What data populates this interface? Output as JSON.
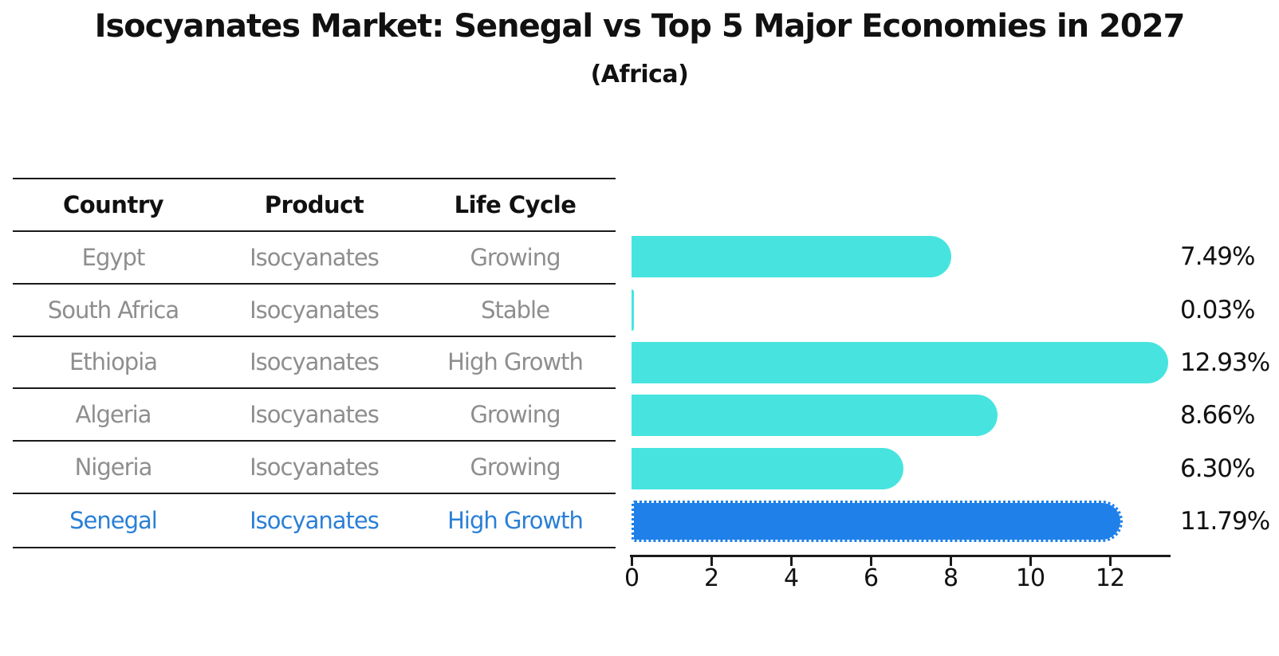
{
  "title": "Isocyanates Market: Senegal vs Top 5 Major Economies in 2027",
  "subtitle": "(Africa)",
  "table": {
    "headers": [
      "Country",
      "Product",
      "Life Cycle"
    ],
    "rows": [
      {
        "country": "Egypt",
        "product": "Isocyanates",
        "life_cycle": "Growing",
        "highlight": false
      },
      {
        "country": "South Africa",
        "product": "Isocyanates",
        "life_cycle": "Stable",
        "highlight": false
      },
      {
        "country": "Ethiopia",
        "product": "Isocyanates",
        "life_cycle": "High Growth",
        "highlight": false
      },
      {
        "country": "Algeria",
        "product": "Isocyanates",
        "life_cycle": "Growing",
        "highlight": false
      },
      {
        "country": "Nigeria",
        "product": "Isocyanates",
        "life_cycle": "Growing",
        "highlight": false
      },
      {
        "country": "Senegal",
        "product": "Isocyanates",
        "life_cycle": "High Growth",
        "highlight": true
      }
    ]
  },
  "chart_data": {
    "type": "bar",
    "orientation": "horizontal",
    "title": "Isocyanates Market: Senegal vs Top 5 Major Economies in 2027",
    "subtitle": "(Africa)",
    "categories": [
      "Egypt",
      "South Africa",
      "Ethiopia",
      "Algeria",
      "Nigeria",
      "Senegal"
    ],
    "values": [
      7.49,
      0.03,
      12.93,
      8.66,
      6.3,
      11.79
    ],
    "value_labels": [
      "7.49%",
      "0.03%",
      "12.93%",
      "8.66%",
      "6.30%",
      "11.79%"
    ],
    "x_ticks": [
      "0",
      "2",
      "4",
      "6",
      "8",
      "10",
      "12"
    ],
    "xlim": [
      0,
      13.5
    ],
    "highlight_index": 5,
    "grid": false,
    "legend": "none"
  },
  "colors": {
    "bar": "#47E4DF",
    "highlight_bar": "#1E80E8",
    "highlight_text": "#2B7FD6",
    "table_text": "#8e8e8e",
    "header_text": "#111111",
    "axis": "#1a1a1a"
  }
}
